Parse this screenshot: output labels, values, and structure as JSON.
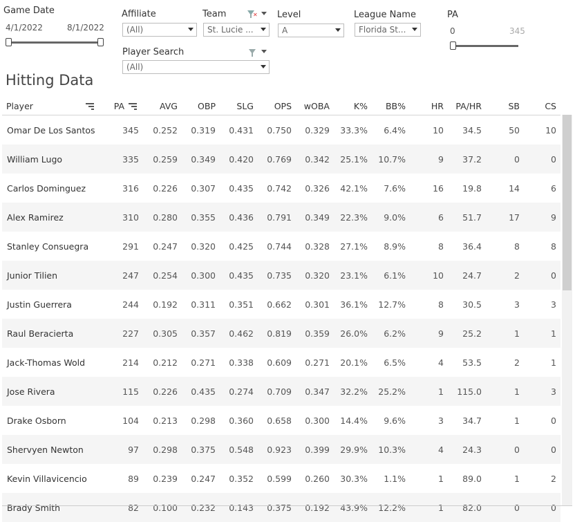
{
  "filters": {
    "game_date": {
      "label": "Game Date",
      "start": "4/1/2022",
      "end": "8/1/2022"
    },
    "affiliate": {
      "label": "Affiliate",
      "value": "(All)"
    },
    "team": {
      "label": "Team",
      "value": "St. Lucie ..."
    },
    "level": {
      "label": "Level",
      "value": "A"
    },
    "league": {
      "label": "League Name",
      "value": "Florida St..."
    },
    "pa": {
      "label": "PA",
      "min": "0",
      "max": "345"
    },
    "player_search": {
      "label": "Player Search",
      "value": "(All)"
    }
  },
  "icons": {
    "filter": "funnel-icon",
    "sort": "sort-descending-icon",
    "caret": "chevron-down-icon"
  },
  "table": {
    "title": "Hitting Data",
    "columns": [
      "Player",
      "PA",
      "AVG",
      "OBP",
      "SLG",
      "OPS",
      "wOBA",
      "K%",
      "BB%",
      "HR",
      "PA/HR",
      "SB",
      "CS"
    ],
    "rows": [
      [
        "Omar De Los Santos",
        "345",
        "0.252",
        "0.319",
        "0.431",
        "0.750",
        "0.329",
        "33.3%",
        "6.4%",
        "10",
        "34.5",
        "50",
        "10"
      ],
      [
        "William Lugo",
        "335",
        "0.259",
        "0.349",
        "0.420",
        "0.769",
        "0.342",
        "25.1%",
        "10.7%",
        "9",
        "37.2",
        "0",
        "0"
      ],
      [
        "Carlos Dominguez",
        "316",
        "0.226",
        "0.307",
        "0.435",
        "0.742",
        "0.326",
        "42.1%",
        "7.6%",
        "16",
        "19.8",
        "14",
        "6"
      ],
      [
        "Alex Ramirez",
        "310",
        "0.280",
        "0.355",
        "0.436",
        "0.791",
        "0.349",
        "22.3%",
        "9.0%",
        "6",
        "51.7",
        "17",
        "9"
      ],
      [
        "Stanley Consuegra",
        "291",
        "0.247",
        "0.320",
        "0.425",
        "0.744",
        "0.328",
        "27.1%",
        "8.9%",
        "8",
        "36.4",
        "8",
        "8"
      ],
      [
        "Junior Tilien",
        "247",
        "0.254",
        "0.300",
        "0.435",
        "0.735",
        "0.320",
        "23.1%",
        "6.1%",
        "10",
        "24.7",
        "2",
        "0"
      ],
      [
        "Justin Guerrera",
        "244",
        "0.192",
        "0.311",
        "0.351",
        "0.662",
        "0.301",
        "36.1%",
        "12.7%",
        "8",
        "30.5",
        "3",
        "3"
      ],
      [
        "Raul Beracierta",
        "227",
        "0.305",
        "0.357",
        "0.462",
        "0.819",
        "0.359",
        "26.0%",
        "6.2%",
        "9",
        "25.2",
        "1",
        "1"
      ],
      [
        "Jack-Thomas Wold",
        "214",
        "0.212",
        "0.271",
        "0.338",
        "0.609",
        "0.271",
        "20.1%",
        "6.5%",
        "4",
        "53.5",
        "2",
        "1"
      ],
      [
        "Jose Rivera",
        "115",
        "0.226",
        "0.435",
        "0.274",
        "0.709",
        "0.347",
        "32.2%",
        "25.2%",
        "1",
        "115.0",
        "1",
        "3"
      ],
      [
        "Drake Osborn",
        "104",
        "0.213",
        "0.298",
        "0.360",
        "0.658",
        "0.300",
        "14.4%",
        "9.6%",
        "3",
        "34.7",
        "1",
        "0"
      ],
      [
        "Shervyen Newton",
        "97",
        "0.298",
        "0.375",
        "0.548",
        "0.923",
        "0.399",
        "29.9%",
        "10.3%",
        "4",
        "24.3",
        "0",
        "0"
      ],
      [
        "Kevin Villavicencio",
        "89",
        "0.239",
        "0.247",
        "0.352",
        "0.599",
        "0.260",
        "30.3%",
        "1.1%",
        "1",
        "89.0",
        "1",
        "2"
      ],
      [
        "Brady Smith",
        "82",
        "0.100",
        "0.232",
        "0.143",
        "0.375",
        "0.192",
        "43.9%",
        "12.2%",
        "1",
        "82.0",
        "0",
        "0"
      ]
    ]
  }
}
